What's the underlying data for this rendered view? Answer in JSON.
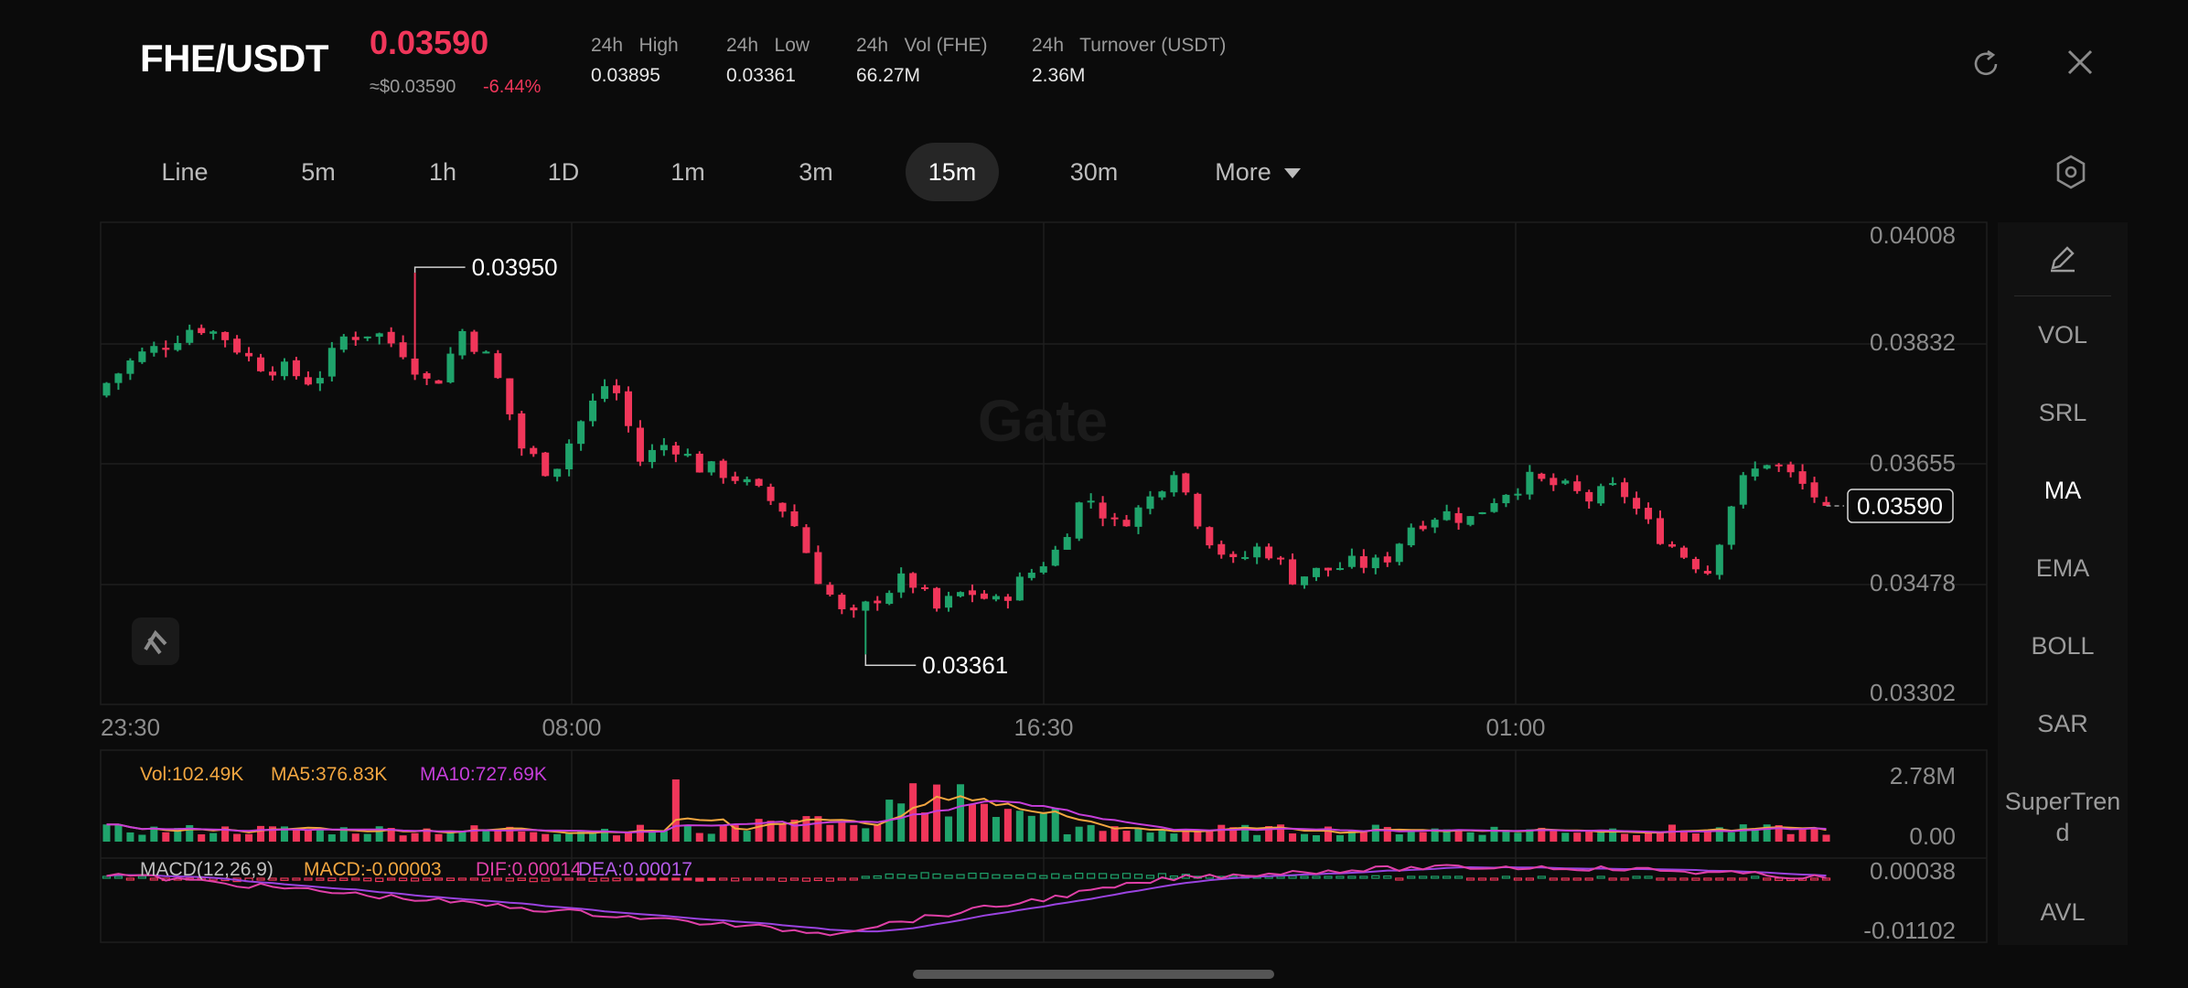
{
  "header": {
    "pair": "FHE/USDT",
    "price": "0.03590",
    "usd_price": "≈$0.03590",
    "change": "-6.44%",
    "stats": [
      {
        "label": "24h   High",
        "value": "0.03895"
      },
      {
        "label": "24h   Low",
        "value": "0.03361"
      },
      {
        "label": "24h   Vol (FHE)",
        "value": "66.27M"
      },
      {
        "label": "24h   Turnover (USDT)",
        "value": "2.36M"
      }
    ],
    "refresh_icon": "refresh-icon",
    "close_icon": "close-icon"
  },
  "timeframes": [
    "Line",
    "5m",
    "1h",
    "1D",
    "1m",
    "3m",
    "15m",
    "30m",
    "More"
  ],
  "active_timeframe": "15m",
  "indicators": [
    "VOL",
    "SRL",
    "MA",
    "EMA",
    "BOLL",
    "SAR",
    "SuperTren d",
    "AVL"
  ],
  "active_indicator": "MA",
  "colors": {
    "up": "#1fa36b",
    "down": "#f0365a",
    "ma5": "#f2a640",
    "ma10": "#c53ed9",
    "background": "#0b0b0b"
  },
  "chart_data": {
    "type": "candlestick",
    "y_axis": [
      "0.04008",
      "0.03832",
      "0.03655",
      "0.03478",
      "0.03302"
    ],
    "ylim": [
      0.03302,
      0.04008
    ],
    "x_axis": [
      "23:30",
      "08:00",
      "16:30",
      "01:00"
    ],
    "high_annotation": "0.03950",
    "low_annotation": "0.03361",
    "last_price_label": "0.03590",
    "watermark": "Gate",
    "volume": {
      "labels": {
        "vol": "Vol:102.49K",
        "ma5": "MA5:376.83K",
        "ma10": "MA10:727.69K"
      },
      "y_axis": [
        "2.78M",
        "0.00"
      ]
    },
    "macd": {
      "labels": {
        "title": "MACD(12,26,9)",
        "macd": "MACD:-0.00003",
        "dif": "DIF:0.00014",
        "dea": "DEA:0.00017"
      },
      "y_axis": [
        "0.00038",
        "-0.01102"
      ]
    },
    "anchors": [
      [
        0.0376,
        0.0378
      ],
      [
        0.0379,
        0.0382
      ],
      [
        0.0382,
        0.0384
      ],
      [
        0.0384,
        0.0387
      ],
      [
        0.0387,
        0.0385
      ],
      [
        0.0385,
        0.0381
      ],
      [
        0.0381,
        0.038
      ],
      [
        0.0381,
        0.0378
      ],
      [
        0.0378,
        0.0385
      ],
      [
        0.0384,
        0.0386
      ],
      [
        0.0386,
        0.0383
      ],
      [
        0.0383,
        0.0377
      ],
      [
        0.0378,
        0.0386
      ],
      [
        0.0386,
        0.0381
      ],
      [
        0.0381,
        0.0368
      ],
      [
        0.0367,
        0.0364
      ],
      [
        0.0364,
        0.0372
      ],
      [
        0.0372,
        0.0379
      ],
      [
        0.0379,
        0.0366
      ],
      [
        0.0366,
        0.0369
      ],
      [
        0.037,
        0.0365
      ],
      [
        0.0365,
        0.0364
      ],
      [
        0.0364,
        0.0361
      ],
      [
        0.0361,
        0.0358
      ],
      [
        0.0356,
        0.0348
      ],
      [
        0.0347,
        0.0341
      ],
      [
        0.0341,
        0.0345
      ],
      [
        0.0345,
        0.0348
      ],
      [
        0.0348,
        0.0343
      ],
      [
        0.0343,
        0.0346
      ],
      [
        0.0346,
        0.0344
      ],
      [
        0.0344,
        0.0348
      ],
      [
        0.0348,
        0.0352
      ],
      [
        0.0352,
        0.0361
      ],
      [
        0.036,
        0.0356
      ],
      [
        0.0356,
        0.0359
      ],
      [
        0.0359,
        0.0365
      ],
      [
        0.0365,
        0.0355
      ],
      [
        0.0355,
        0.035
      ],
      [
        0.035,
        0.0353
      ],
      [
        0.0353,
        0.0348
      ],
      [
        0.0348,
        0.0349
      ],
      [
        0.0349,
        0.035
      ],
      [
        0.035,
        0.035
      ],
      [
        0.035,
        0.0356
      ],
      [
        0.0356,
        0.0358
      ],
      [
        0.0358,
        0.0357
      ],
      [
        0.0357,
        0.0361
      ],
      [
        0.0361,
        0.0363
      ],
      [
        0.0363,
        0.0362
      ],
      [
        0.0362,
        0.036
      ],
      [
        0.036,
        0.0362
      ],
      [
        0.0362,
        0.0356
      ],
      [
        0.0356,
        0.0352
      ],
      [
        0.0352,
        0.0349
      ],
      [
        0.0349,
        0.0362
      ],
      [
        0.0362,
        0.0366
      ],
      [
        0.0366,
        0.0363
      ],
      [
        0.0363,
        0.0359
      ]
    ]
  }
}
